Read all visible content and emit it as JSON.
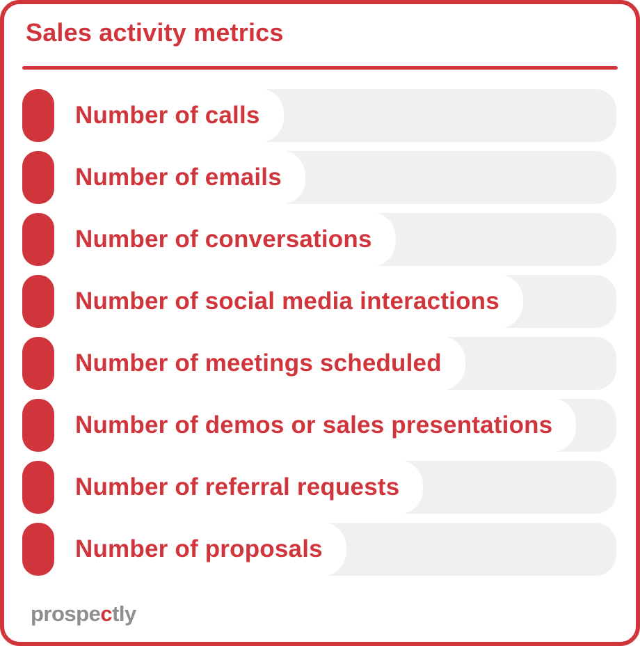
{
  "header": {
    "title": "Sales activity metrics"
  },
  "metrics": [
    {
      "label": "Number of calls"
    },
    {
      "label": "Number of emails"
    },
    {
      "label": "Number of conversations"
    },
    {
      "label": "Number of social media interactions"
    },
    {
      "label": "Number of meetings scheduled"
    },
    {
      "label": "Number of demos or sales presentations"
    },
    {
      "label": "Number of referral requests"
    },
    {
      "label": "Number of proposals"
    }
  ],
  "footer": {
    "logo_prefix": "prospe",
    "logo_accent": "c",
    "logo_suffix": "tly"
  },
  "icons": {
    "bullet": "rounded-rectangle-bullet-icon"
  },
  "colors": {
    "red": "#d0353c",
    "pill-gray": "#f0f0f0",
    "logo-gray": "#8d8e90",
    "background": "#ffffff"
  }
}
